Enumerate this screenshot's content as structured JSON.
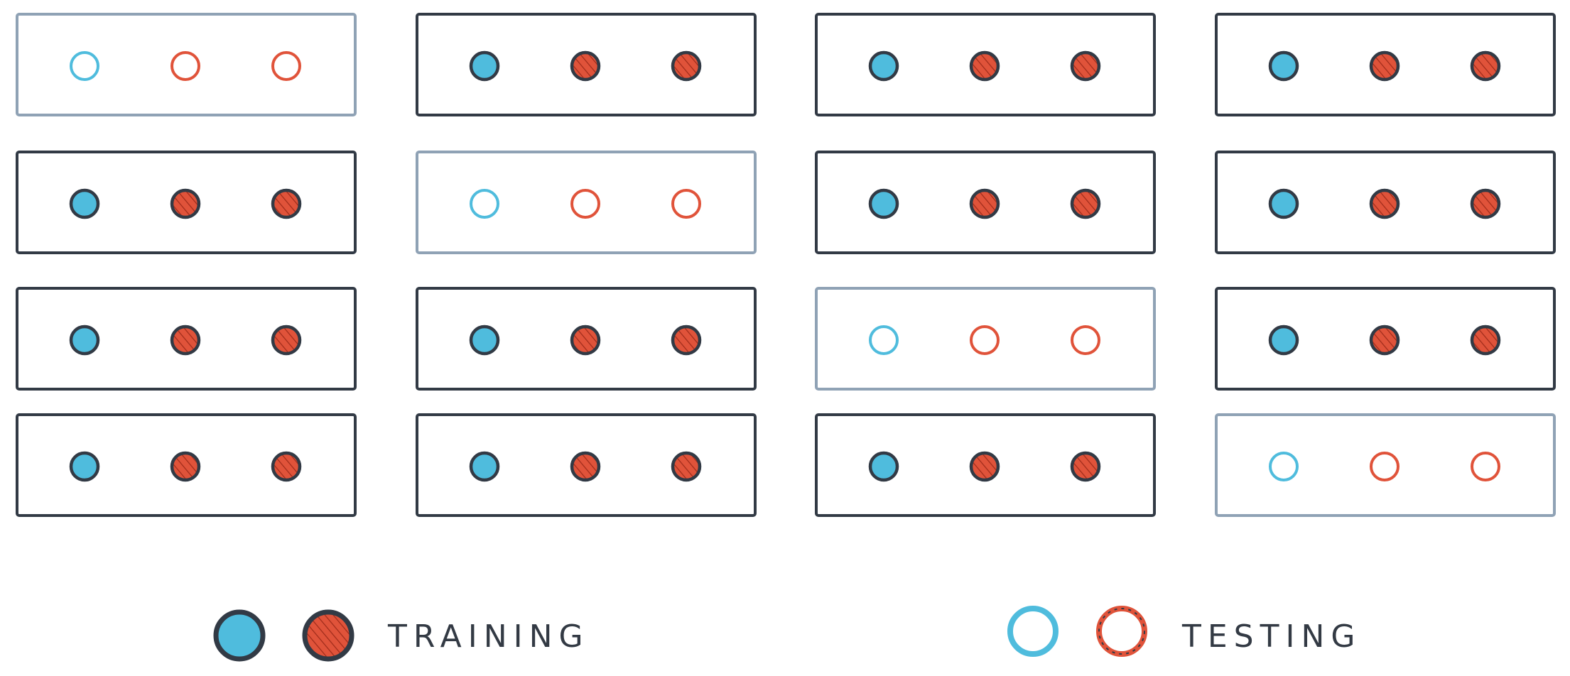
{
  "colors": {
    "blue": "#4fbcdd",
    "red": "#e0533a",
    "dark": "#323a45",
    "testing_border": "#8fa2b5"
  },
  "grid": {
    "rows": 4,
    "cols": 4,
    "points_per_box": 3,
    "testing_cells": [
      [
        0,
        0
      ],
      [
        1,
        1
      ],
      [
        2,
        2
      ],
      [
        3,
        3
      ]
    ]
  },
  "legend": {
    "training_label": "TRAINING",
    "testing_label": "TESTING"
  }
}
